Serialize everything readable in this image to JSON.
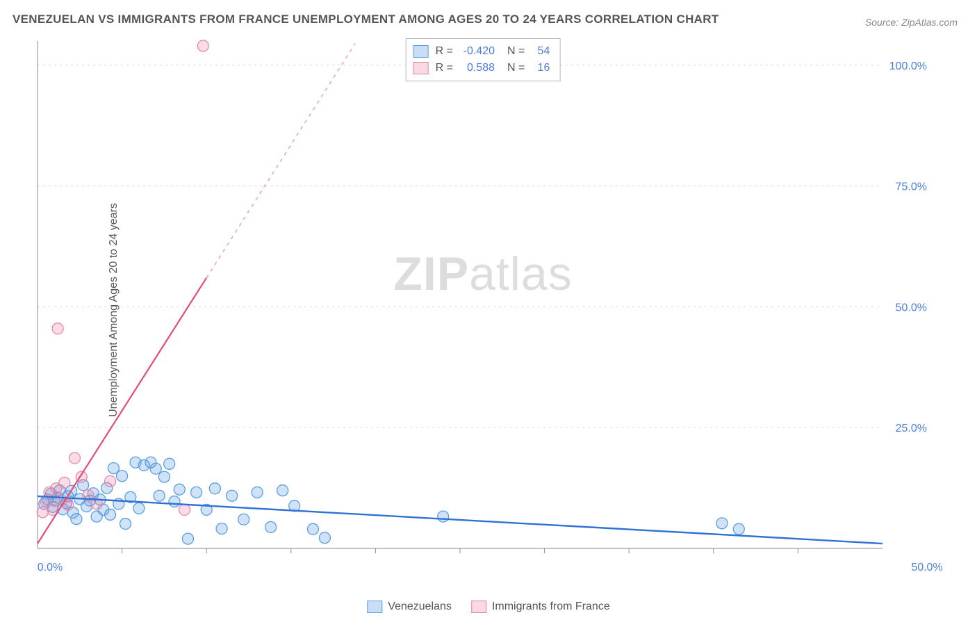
{
  "title": "VENEZUELAN VS IMMIGRANTS FROM FRANCE UNEMPLOYMENT AMONG AGES 20 TO 24 YEARS CORRELATION CHART",
  "source": "Source: ZipAtlas.com",
  "ylabel": "Unemployment Among Ages 20 to 24 years",
  "watermark_a": "ZIP",
  "watermark_b": "atlas",
  "chart": {
    "type": "scatter",
    "xlim": [
      0,
      50
    ],
    "ylim": [
      0,
      105
    ],
    "background": "#ffffff",
    "grid_color": "#bbbbbb",
    "grid_dash": "3 5",
    "axis_color": "#888888",
    "ytick_values": [
      25,
      50,
      75,
      100
    ],
    "ytick_labels": [
      "25.0%",
      "50.0%",
      "75.0%",
      "100.0%"
    ],
    "x_origin_label": "0.0%",
    "x_end_label": "50.0%",
    "xtick_minor": [
      5,
      10,
      15,
      20,
      25,
      30,
      35,
      40,
      45
    ],
    "tick_label_color": "#4a7fd8",
    "tick_label_fontsize": 16,
    "series": [
      {
        "name": "Venezuelans",
        "color_fill": "rgba(100,160,230,0.30)",
        "color_stroke": "#5a9fe0",
        "marker_r": 8,
        "R": "-0.420",
        "N": "54",
        "trend": {
          "x1": 0,
          "y1": 10.8,
          "x2": 50,
          "y2": 1.0,
          "stroke": "#2f72d6",
          "width": 2.4,
          "dash": null
        },
        "points": [
          [
            0.4,
            9.2
          ],
          [
            0.6,
            10.1
          ],
          [
            0.8,
            11.3
          ],
          [
            0.9,
            8.6
          ],
          [
            1.0,
            9.9
          ],
          [
            1.2,
            10.5
          ],
          [
            1.3,
            12.0
          ],
          [
            1.5,
            8.1
          ],
          [
            1.7,
            9.4
          ],
          [
            1.8,
            10.8
          ],
          [
            2.0,
            11.9
          ],
          [
            2.1,
            7.4
          ],
          [
            2.3,
            6.1
          ],
          [
            2.5,
            10.2
          ],
          [
            2.7,
            13.1
          ],
          [
            2.9,
            8.7
          ],
          [
            3.1,
            9.9
          ],
          [
            3.3,
            11.4
          ],
          [
            3.5,
            6.6
          ],
          [
            3.7,
            10.1
          ],
          [
            3.9,
            8.0
          ],
          [
            4.1,
            12.5
          ],
          [
            4.3,
            7.0
          ],
          [
            4.5,
            16.6
          ],
          [
            4.8,
            9.2
          ],
          [
            5.0,
            15.0
          ],
          [
            5.2,
            5.1
          ],
          [
            5.5,
            10.6
          ],
          [
            5.8,
            17.8
          ],
          [
            6.0,
            8.3
          ],
          [
            6.3,
            17.2
          ],
          [
            6.7,
            17.8
          ],
          [
            7.0,
            16.5
          ],
          [
            7.2,
            10.9
          ],
          [
            7.5,
            14.8
          ],
          [
            7.8,
            17.5
          ],
          [
            8.1,
            9.7
          ],
          [
            8.4,
            12.2
          ],
          [
            8.9,
            2.0
          ],
          [
            9.4,
            11.6
          ],
          [
            10.0,
            8.0
          ],
          [
            10.5,
            12.4
          ],
          [
            10.9,
            4.1
          ],
          [
            11.5,
            10.9
          ],
          [
            12.2,
            6.0
          ],
          [
            13.0,
            11.6
          ],
          [
            13.8,
            4.4
          ],
          [
            14.5,
            12.0
          ],
          [
            15.2,
            8.8
          ],
          [
            16.3,
            4.0
          ],
          [
            17.0,
            2.2
          ],
          [
            24.0,
            6.6
          ],
          [
            40.5,
            5.2
          ],
          [
            41.5,
            4.0
          ]
        ]
      },
      {
        "name": "Immigrants from France",
        "color_fill": "rgba(240,130,165,0.28)",
        "color_stroke": "#e689a8",
        "marker_r": 8,
        "R": "0.588",
        "N": "16",
        "trend": {
          "x1": 0,
          "y1": 1.0,
          "x2": 10,
          "y2": 56,
          "stroke": "#e24b7b",
          "width": 2.2,
          "dash": null
        },
        "trend_ext": {
          "x1": 10,
          "y1": 56,
          "x2": 18.8,
          "y2": 104.5,
          "stroke": "#e8a0b8",
          "width": 1.5,
          "dash": "5 6"
        },
        "points": [
          [
            0.3,
            7.5
          ],
          [
            0.5,
            9.8
          ],
          [
            0.7,
            11.6
          ],
          [
            0.9,
            8.0
          ],
          [
            1.1,
            12.4
          ],
          [
            1.4,
            10.0
          ],
          [
            1.6,
            13.6
          ],
          [
            1.8,
            9.0
          ],
          [
            2.2,
            18.7
          ],
          [
            2.6,
            14.8
          ],
          [
            3.0,
            11.0
          ],
          [
            3.5,
            9.2
          ],
          [
            4.3,
            13.9
          ],
          [
            8.7,
            8.0
          ],
          [
            1.2,
            45.5
          ],
          [
            9.8,
            104.0
          ]
        ]
      }
    ]
  },
  "legend": {
    "item1": "Venezuelans",
    "item2": "Immigrants from France"
  },
  "stats": {
    "r_label": "R =",
    "n_label": "N ="
  }
}
